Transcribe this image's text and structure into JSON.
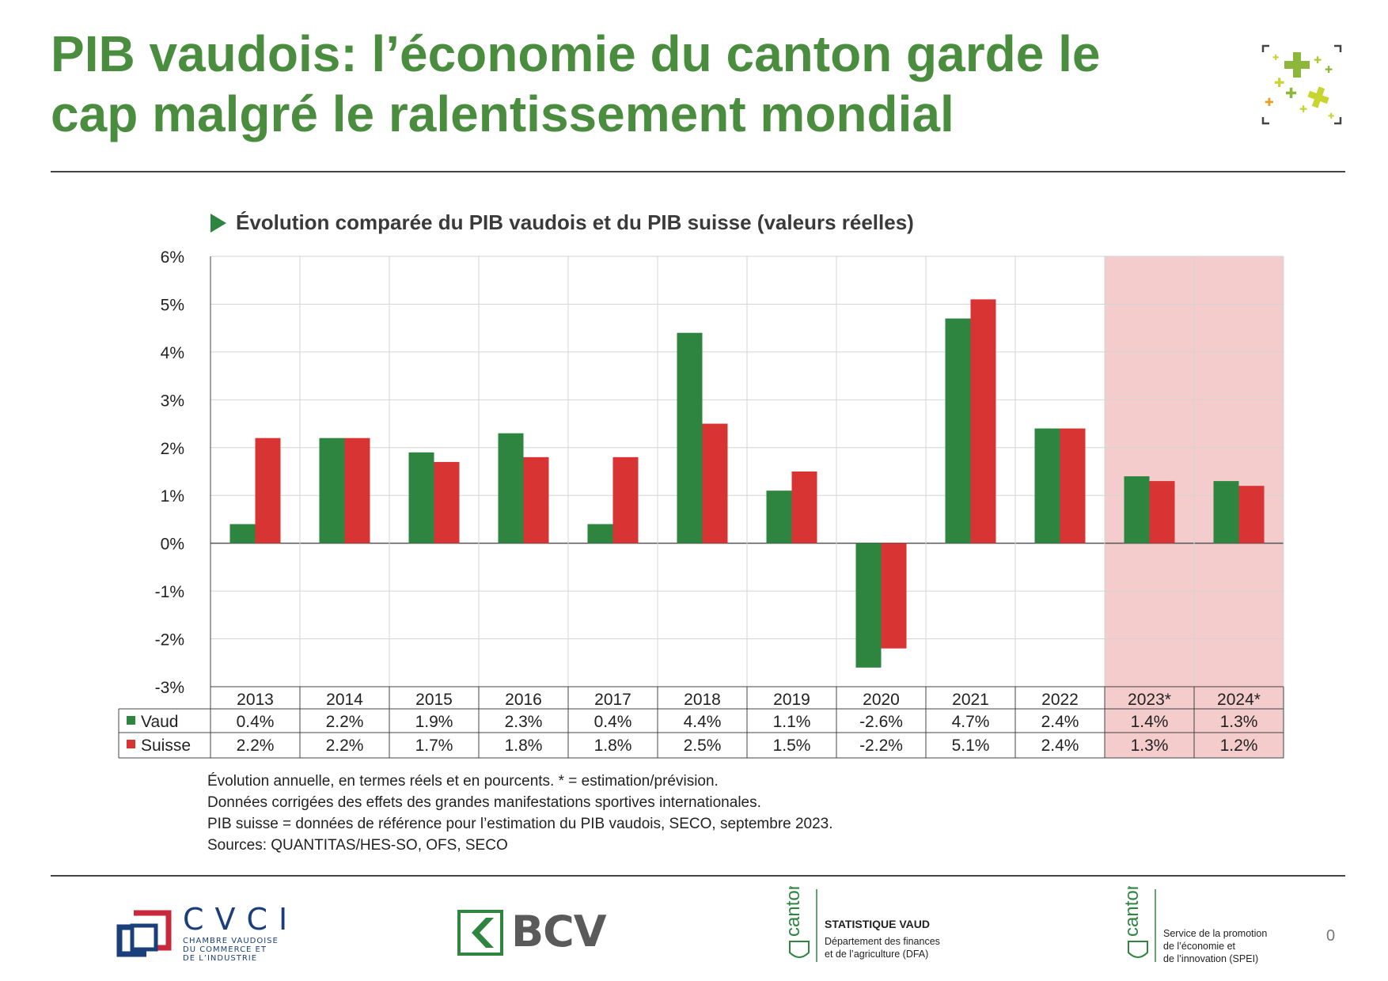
{
  "page": {
    "title": "PIB vaudois: l’économie du canton garde le cap malgré le ralentissement mondial",
    "page_number": "0"
  },
  "chart_data": {
    "type": "bar",
    "title": "Évolution comparée du PIB vaudois et du PIB suisse (valeurs réelles)",
    "categories": [
      "2013",
      "2014",
      "2015",
      "2016",
      "2017",
      "2018",
      "2019",
      "2020",
      "2021",
      "2022",
      "2023*",
      "2024*"
    ],
    "series": [
      {
        "name": "Vaud",
        "color": "#2e8540",
        "values": [
          0.4,
          2.2,
          1.9,
          2.3,
          0.4,
          4.4,
          1.1,
          -2.6,
          4.7,
          2.4,
          1.4,
          1.3
        ],
        "labels": [
          "0.4%",
          "2.2%",
          "1.9%",
          "2.3%",
          "0.4%",
          "4.4%",
          "1.1%",
          "-2.6%",
          "4.7%",
          "2.4%",
          "1.4%",
          "1.3%"
        ]
      },
      {
        "name": "Suisse",
        "color": "#d93434",
        "values": [
          2.2,
          2.2,
          1.7,
          1.8,
          1.8,
          2.5,
          1.5,
          -2.2,
          5.1,
          2.4,
          1.3,
          1.2
        ],
        "labels": [
          "2.2%",
          "2.2%",
          "1.7%",
          "1.8%",
          "1.8%",
          "2.5%",
          "1.5%",
          "-2.2%",
          "5.1%",
          "2.4%",
          "1.3%",
          "1.2%"
        ]
      }
    ],
    "ylim": [
      -3,
      6
    ],
    "yticks": [
      "6%",
      "5%",
      "4%",
      "3%",
      "2%",
      "1%",
      "0%",
      "-1%",
      "-2%",
      "-3%"
    ],
    "forecast_categories": [
      "2023*",
      "2024*"
    ],
    "forecast_shade_color": "#f4cccc",
    "grid": true,
    "legend": "data table below chart"
  },
  "notes": [
    "Évolution annuelle, en termes réels et en pourcents. * = estimation/prévision.",
    "Données corrigées des effets des grandes manifestations sportives internationales.",
    "PIB suisse = données de référence pour l’estimation du PIB vaudois, SECO, septembre 2023.",
    "Sources: QUANTITAS/HES-SO, OFS, SECO"
  ],
  "footer": {
    "cvci": {
      "name": "CVCI",
      "subtitle_lines": [
        "CHAMBRE VAUDOISE",
        "DU COMMERCE ET",
        "DE L’INDUSTRIE"
      ]
    },
    "bcv": {
      "name": "BCV"
    },
    "statistique_vaud": {
      "emblem": "canton de vaud",
      "title": "STATISTIQUE VAUD",
      "lines": [
        "Département des finances",
        "et de l’agriculture (DFA)"
      ]
    },
    "spei": {
      "emblem": "canton de vaud",
      "lines": [
        "Service de la promotion",
        "de l’économie et",
        "de l’innovation (SPEI)"
      ]
    }
  }
}
